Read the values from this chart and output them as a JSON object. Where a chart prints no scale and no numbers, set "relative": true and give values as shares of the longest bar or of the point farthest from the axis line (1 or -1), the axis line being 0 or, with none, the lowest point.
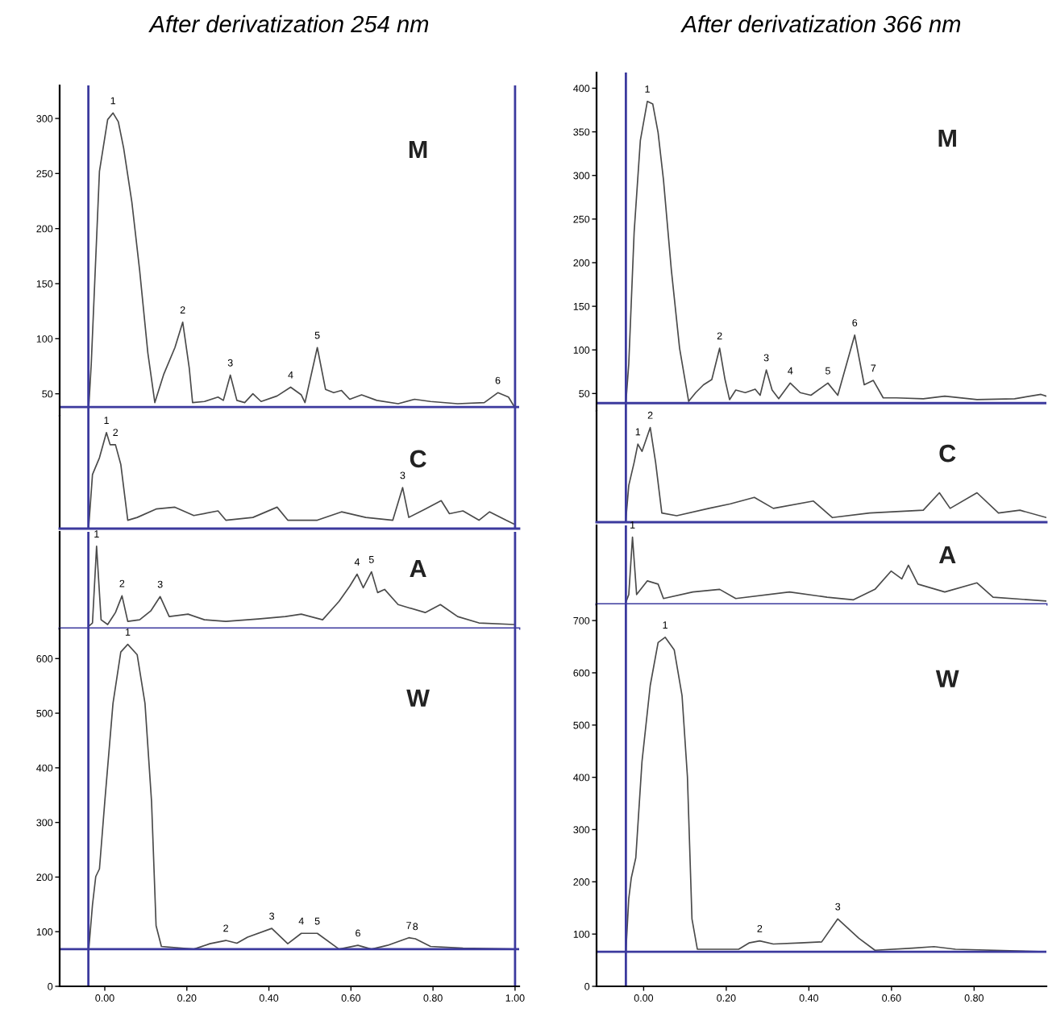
{
  "chart_data": [
    {
      "type": "line",
      "title": "After derivatization 254 nm",
      "xlim": [
        -0.11,
        1.01
      ],
      "tick_labels": "y",
      "ylim": [
        30,
        330
      ],
      "yticks": [
        50,
        100,
        150,
        200,
        250,
        300
      ],
      "x": [
        -0.039,
        -0.033,
        -0.013,
        0.007,
        0.02,
        0.033,
        0.046,
        0.066,
        0.085,
        0.105,
        0.122,
        0.144,
        0.171,
        0.19,
        0.206,
        0.214,
        0.243,
        0.276,
        0.289,
        0.306,
        0.322,
        0.341,
        0.361,
        0.381,
        0.42,
        0.453,
        0.479,
        0.488,
        0.518,
        0.538,
        0.558,
        0.577,
        0.597,
        0.626,
        0.663,
        0.715,
        0.755,
        0.794,
        0.86,
        0.925,
        0.958,
        0.984,
        0.997
      ],
      "series": [
        {
          "color": "#4a4a4a",
          "values": [
            38,
            77,
            252,
            299,
            305,
            297,
            273,
            224,
            162,
            87,
            42,
            68,
            92,
            115,
            73,
            42,
            43,
            47,
            44,
            67,
            44,
            42,
            50,
            43,
            48,
            56,
            49,
            42,
            92,
            54,
            51,
            53,
            45,
            49,
            44,
            41,
            45,
            43,
            41,
            42,
            51,
            47,
            39
          ]
        }
      ],
      "ref_lines": [
        {
          "axis": "x",
          "value": -0.04,
          "color": "#3c3a9e"
        },
        {
          "axis": "x",
          "value": 1.0,
          "color": "#3c3a9e"
        },
        {
          "axis": "y",
          "value": 38,
          "color": "#3c3a9e"
        }
      ],
      "annotations": [
        "M",
        {
          "text": "1",
          "x": 0.02,
          "y": 305
        },
        {
          "text": "2",
          "x": 0.19,
          "y": 115
        },
        {
          "text": "3",
          "x": 0.306,
          "y": 67
        },
        {
          "text": "4",
          "x": 0.453,
          "y": 56
        },
        {
          "text": "5",
          "x": 0.518,
          "y": 92
        },
        {
          "text": "6",
          "x": 0.958,
          "y": 51
        }
      ]
    },
    {
      "type": "line",
      "relative": true,
      "xlim": [
        -0.11,
        1.01
      ],
      "tick_labels": false,
      "x": [
        -0.039,
        -0.03,
        -0.013,
        0.004,
        0.013,
        0.026,
        0.039,
        0.056,
        0.079,
        0.125,
        0.171,
        0.217,
        0.276,
        0.295,
        0.361,
        0.42,
        0.446,
        0.518,
        0.577,
        0.636,
        0.702,
        0.726,
        0.741,
        0.781,
        0.82,
        0.84,
        0.873,
        0.912,
        0.938,
        0.978,
        0.997
      ],
      "series": [
        {
          "color": "#4a4a4a",
          "values": [
            0,
            0.55,
            0.73,
            1.0,
            0.87,
            0.87,
            0.66,
            0.06,
            0.09,
            0.18,
            0.2,
            0.11,
            0.16,
            0.06,
            0.09,
            0.2,
            0.06,
            0.06,
            0.15,
            0.09,
            0.06,
            0.41,
            0.09,
            0.18,
            0.27,
            0.13,
            0.16,
            0.06,
            0.15,
            0.06,
            0.02
          ]
        }
      ],
      "ref_lines": [
        {
          "axis": "x",
          "value": -0.04,
          "color": "#3c3a9e"
        },
        {
          "axis": "x",
          "value": 1.0,
          "color": "#3c3a9e"
        }
      ],
      "annotations": [
        "C",
        {
          "text": "1",
          "x": 0.004,
          "y": 1.0
        },
        {
          "text": "2",
          "x": 0.026,
          "y": 0.87
        },
        {
          "text": "3",
          "x": 0.726,
          "y": 0.41
        }
      ]
    },
    {
      "type": "line",
      "relative": true,
      "xlim": [
        -0.11,
        1.01
      ],
      "tick_labels": false,
      "x": [
        -0.039,
        -0.03,
        -0.02,
        -0.009,
        0.007,
        0.026,
        0.042,
        0.056,
        0.085,
        0.112,
        0.135,
        0.157,
        0.203,
        0.243,
        0.295,
        0.374,
        0.44,
        0.479,
        0.531,
        0.571,
        0.597,
        0.615,
        0.63,
        0.65,
        0.665,
        0.682,
        0.715,
        0.741,
        0.781,
        0.818,
        0.86,
        0.912,
        0.997
      ],
      "series": [
        {
          "color": "#4a4a4a",
          "values": [
            0,
            0.04,
            1.0,
            0.08,
            0.02,
            0.17,
            0.38,
            0.06,
            0.08,
            0.19,
            0.37,
            0.12,
            0.15,
            0.08,
            0.06,
            0.09,
            0.12,
            0.15,
            0.08,
            0.31,
            0.5,
            0.65,
            0.48,
            0.68,
            0.42,
            0.46,
            0.27,
            0.23,
            0.17,
            0.27,
            0.12,
            0.04,
            0.02
          ]
        }
      ],
      "ref_lines": [
        {
          "axis": "x",
          "value": -0.04,
          "color": "#3c3a9e"
        },
        {
          "axis": "x",
          "value": 1.0,
          "color": "#3c3a9e"
        }
      ],
      "annotations": [
        "A",
        {
          "text": "1",
          "x": -0.02,
          "y": 1.0
        },
        {
          "text": "2",
          "x": 0.042,
          "y": 0.38
        },
        {
          "text": "3",
          "x": 0.135,
          "y": 0.37
        },
        {
          "text": "4",
          "x": 0.615,
          "y": 0.65
        },
        {
          "text": "5",
          "x": 0.65,
          "y": 0.68
        }
      ]
    },
    {
      "type": "line",
      "xlim": [
        -0.11,
        1.01
      ],
      "xticks": [
        {
          "value": 0,
          "label": "0.00"
        },
        {
          "value": 0.2,
          "label": "0.20"
        },
        {
          "value": 0.4,
          "label": "0.40"
        },
        {
          "value": 0.6,
          "label": "0.60"
        },
        {
          "value": 0.8,
          "label": "0.80"
        },
        {
          "value": 1.0,
          "label": "1.00"
        }
      ],
      "ylim": [
        0,
        655
      ],
      "yticks": [
        0,
        100,
        200,
        300,
        400,
        500,
        600
      ],
      "x": [
        -0.039,
        -0.03,
        -0.022,
        -0.013,
        0.0,
        0.02,
        0.039,
        0.056,
        0.079,
        0.098,
        0.114,
        0.125,
        0.138,
        0.217,
        0.256,
        0.295,
        0.322,
        0.348,
        0.407,
        0.446,
        0.479,
        0.499,
        0.518,
        0.571,
        0.617,
        0.65,
        0.689,
        0.741,
        0.757,
        0.794,
        0.873,
        0.997
      ],
      "series": [
        {
          "color": "#4a4a4a",
          "values": [
            68,
            149,
            201,
            215,
            338,
            518,
            612,
            626,
            607,
            518,
            338,
            111,
            73,
            68,
            78,
            84,
            79,
            90,
            106,
            78,
            97,
            97,
            97,
            68,
            75,
            68,
            75,
            89,
            87,
            73,
            70,
            68
          ]
        }
      ],
      "ref_lines": [
        {
          "axis": "x",
          "value": -0.04,
          "color": "#3c3a9e"
        },
        {
          "axis": "x",
          "value": 1.0,
          "color": "#3c3a9e"
        },
        {
          "axis": "y",
          "value": 68,
          "color": "#3c3a9e"
        }
      ],
      "annotations": [
        "W",
        {
          "text": "1",
          "x": 0.056,
          "y": 626
        },
        {
          "text": "2",
          "x": 0.295,
          "y": 84
        },
        {
          "text": "3",
          "x": 0.407,
          "y": 106
        },
        {
          "text": "4",
          "x": 0.479,
          "y": 97
        },
        {
          "text": "5",
          "x": 0.518,
          "y": 97
        },
        {
          "text": "6",
          "x": 0.617,
          "y": 75
        },
        {
          "text": "7",
          "x": 0.741,
          "y": 89
        },
        {
          "text": "8",
          "x": 0.757,
          "y": 87
        }
      ]
    },
    {
      "type": "line",
      "title": "After derivatization 366 nm",
      "xlim": [
        -0.114,
        0.975
      ],
      "tick_labels": "y",
      "ylim": [
        30,
        418
      ],
      "yticks": [
        50,
        100,
        150,
        200,
        250,
        300,
        350,
        400
      ],
      "x": [
        -0.043,
        -0.036,
        -0.023,
        -0.008,
        0.009,
        0.022,
        0.035,
        0.048,
        0.067,
        0.087,
        0.109,
        0.126,
        0.145,
        0.165,
        0.184,
        0.197,
        0.208,
        0.223,
        0.246,
        0.27,
        0.282,
        0.297,
        0.311,
        0.327,
        0.355,
        0.379,
        0.405,
        0.446,
        0.47,
        0.511,
        0.534,
        0.556,
        0.58,
        0.612,
        0.677,
        0.729,
        0.807,
        0.898,
        0.962,
        0.975
      ],
      "series": [
        {
          "color": "#4a4a4a",
          "values": [
            39,
            84,
            235,
            340,
            385,
            382,
            349,
            295,
            192,
            102,
            41,
            51,
            60,
            66,
            102,
            66,
            43,
            54,
            51,
            55,
            48,
            77,
            54,
            44,
            62,
            51,
            48,
            62,
            48,
            117,
            60,
            65,
            45,
            45,
            44,
            47,
            43,
            44,
            49,
            47
          ]
        }
      ],
      "ref_lines": [
        {
          "axis": "x",
          "value": -0.043,
          "color": "#3c3a9e"
        },
        {
          "axis": "y",
          "value": 39,
          "color": "#3c3a9e"
        }
      ],
      "annotations": [
        "M",
        {
          "text": "1",
          "x": 0.009,
          "y": 385
        },
        {
          "text": "2",
          "x": 0.184,
          "y": 102
        },
        {
          "text": "3",
          "x": 0.297,
          "y": 77
        },
        {
          "text": "4",
          "x": 0.355,
          "y": 62
        },
        {
          "text": "5",
          "x": 0.446,
          "y": 62
        },
        {
          "text": "6",
          "x": 0.511,
          "y": 117
        },
        {
          "text": "7",
          "x": 0.556,
          "y": 65
        }
      ]
    },
    {
      "type": "line",
      "relative": true,
      "xlim": [
        -0.114,
        0.975
      ],
      "tick_labels": false,
      "x": [
        -0.043,
        -0.036,
        -0.023,
        -0.014,
        -0.004,
        0.016,
        0.029,
        0.044,
        0.08,
        0.158,
        0.21,
        0.268,
        0.314,
        0.411,
        0.457,
        0.547,
        0.677,
        0.716,
        0.742,
        0.807,
        0.859,
        0.911,
        0.975
      ],
      "series": [
        {
          "color": "#4a4a4a",
          "values": [
            0,
            0.37,
            0.62,
            0.82,
            0.74,
            1.0,
            0.62,
            0.07,
            0.04,
            0.12,
            0.17,
            0.24,
            0.12,
            0.2,
            0.02,
            0.07,
            0.1,
            0.29,
            0.12,
            0.29,
            0.07,
            0.1,
            0.02
          ]
        }
      ],
      "ref_lines": [
        {
          "axis": "x",
          "value": -0.043,
          "color": "#3c3a9e"
        }
      ],
      "annotations": [
        "C",
        {
          "text": "1",
          "x": -0.014,
          "y": 0.82
        },
        {
          "text": "2",
          "x": 0.016,
          "y": 1.0
        }
      ]
    },
    {
      "type": "line",
      "relative": true,
      "xlim": [
        -0.114,
        0.975
      ],
      "tick_labels": false,
      "x": [
        -0.043,
        -0.036,
        -0.027,
        -0.017,
        0.009,
        0.035,
        0.048,
        0.119,
        0.184,
        0.223,
        0.353,
        0.444,
        0.508,
        0.56,
        0.599,
        0.625,
        0.641,
        0.664,
        0.729,
        0.807,
        0.846,
        0.975
      ],
      "series": [
        {
          "color": "#4a4a4a",
          "values": [
            0,
            0.12,
            1.0,
            0.12,
            0.33,
            0.28,
            0.06,
            0.16,
            0.2,
            0.06,
            0.16,
            0.08,
            0.04,
            0.2,
            0.48,
            0.36,
            0.57,
            0.28,
            0.16,
            0.3,
            0.08,
            0.02
          ]
        }
      ],
      "ref_lines": [
        {
          "axis": "x",
          "value": -0.043,
          "color": "#3c3a9e"
        }
      ],
      "annotations": [
        "A",
        {
          "text": "1",
          "x": -0.027,
          "y": 1.0
        }
      ]
    },
    {
      "type": "line",
      "xlim": [
        -0.114,
        0.975
      ],
      "xticks": [
        {
          "value": 0,
          "label": "0.00"
        },
        {
          "value": 0.2,
          "label": "0.20"
        },
        {
          "value": 0.4,
          "label": "0.40"
        },
        {
          "value": 0.6,
          "label": "0.60"
        },
        {
          "value": 0.8,
          "label": "0.80"
        }
      ],
      "ylim": [
        0,
        731
      ],
      "yticks": [
        0,
        100,
        200,
        300,
        400,
        500,
        600,
        700
      ],
      "x": [
        -0.043,
        -0.036,
        -0.03,
        -0.019,
        -0.004,
        0.016,
        0.035,
        0.052,
        0.074,
        0.093,
        0.106,
        0.117,
        0.13,
        0.23,
        0.255,
        0.281,
        0.314,
        0.379,
        0.431,
        0.47,
        0.521,
        0.56,
        0.651,
        0.703,
        0.755,
        0.975
      ],
      "series": [
        {
          "color": "#4a4a4a",
          "values": [
            66,
            168,
            207,
            246,
            430,
            576,
            658,
            668,
            644,
            556,
            401,
            129,
            71,
            71,
            83,
            87,
            81,
            83,
            85,
            129,
            92,
            69,
            73,
            76,
            71,
            66
          ]
        }
      ],
      "ref_lines": [
        {
          "axis": "x",
          "value": -0.043,
          "color": "#3c3a9e"
        },
        {
          "axis": "y",
          "value": 66,
          "color": "#3c3a9e"
        }
      ],
      "annotations": [
        "W",
        {
          "text": "1",
          "x": 0.052,
          "y": 668
        },
        {
          "text": "2",
          "x": 0.281,
          "y": 87
        },
        {
          "text": "3",
          "x": 0.47,
          "y": 129
        }
      ]
    }
  ]
}
